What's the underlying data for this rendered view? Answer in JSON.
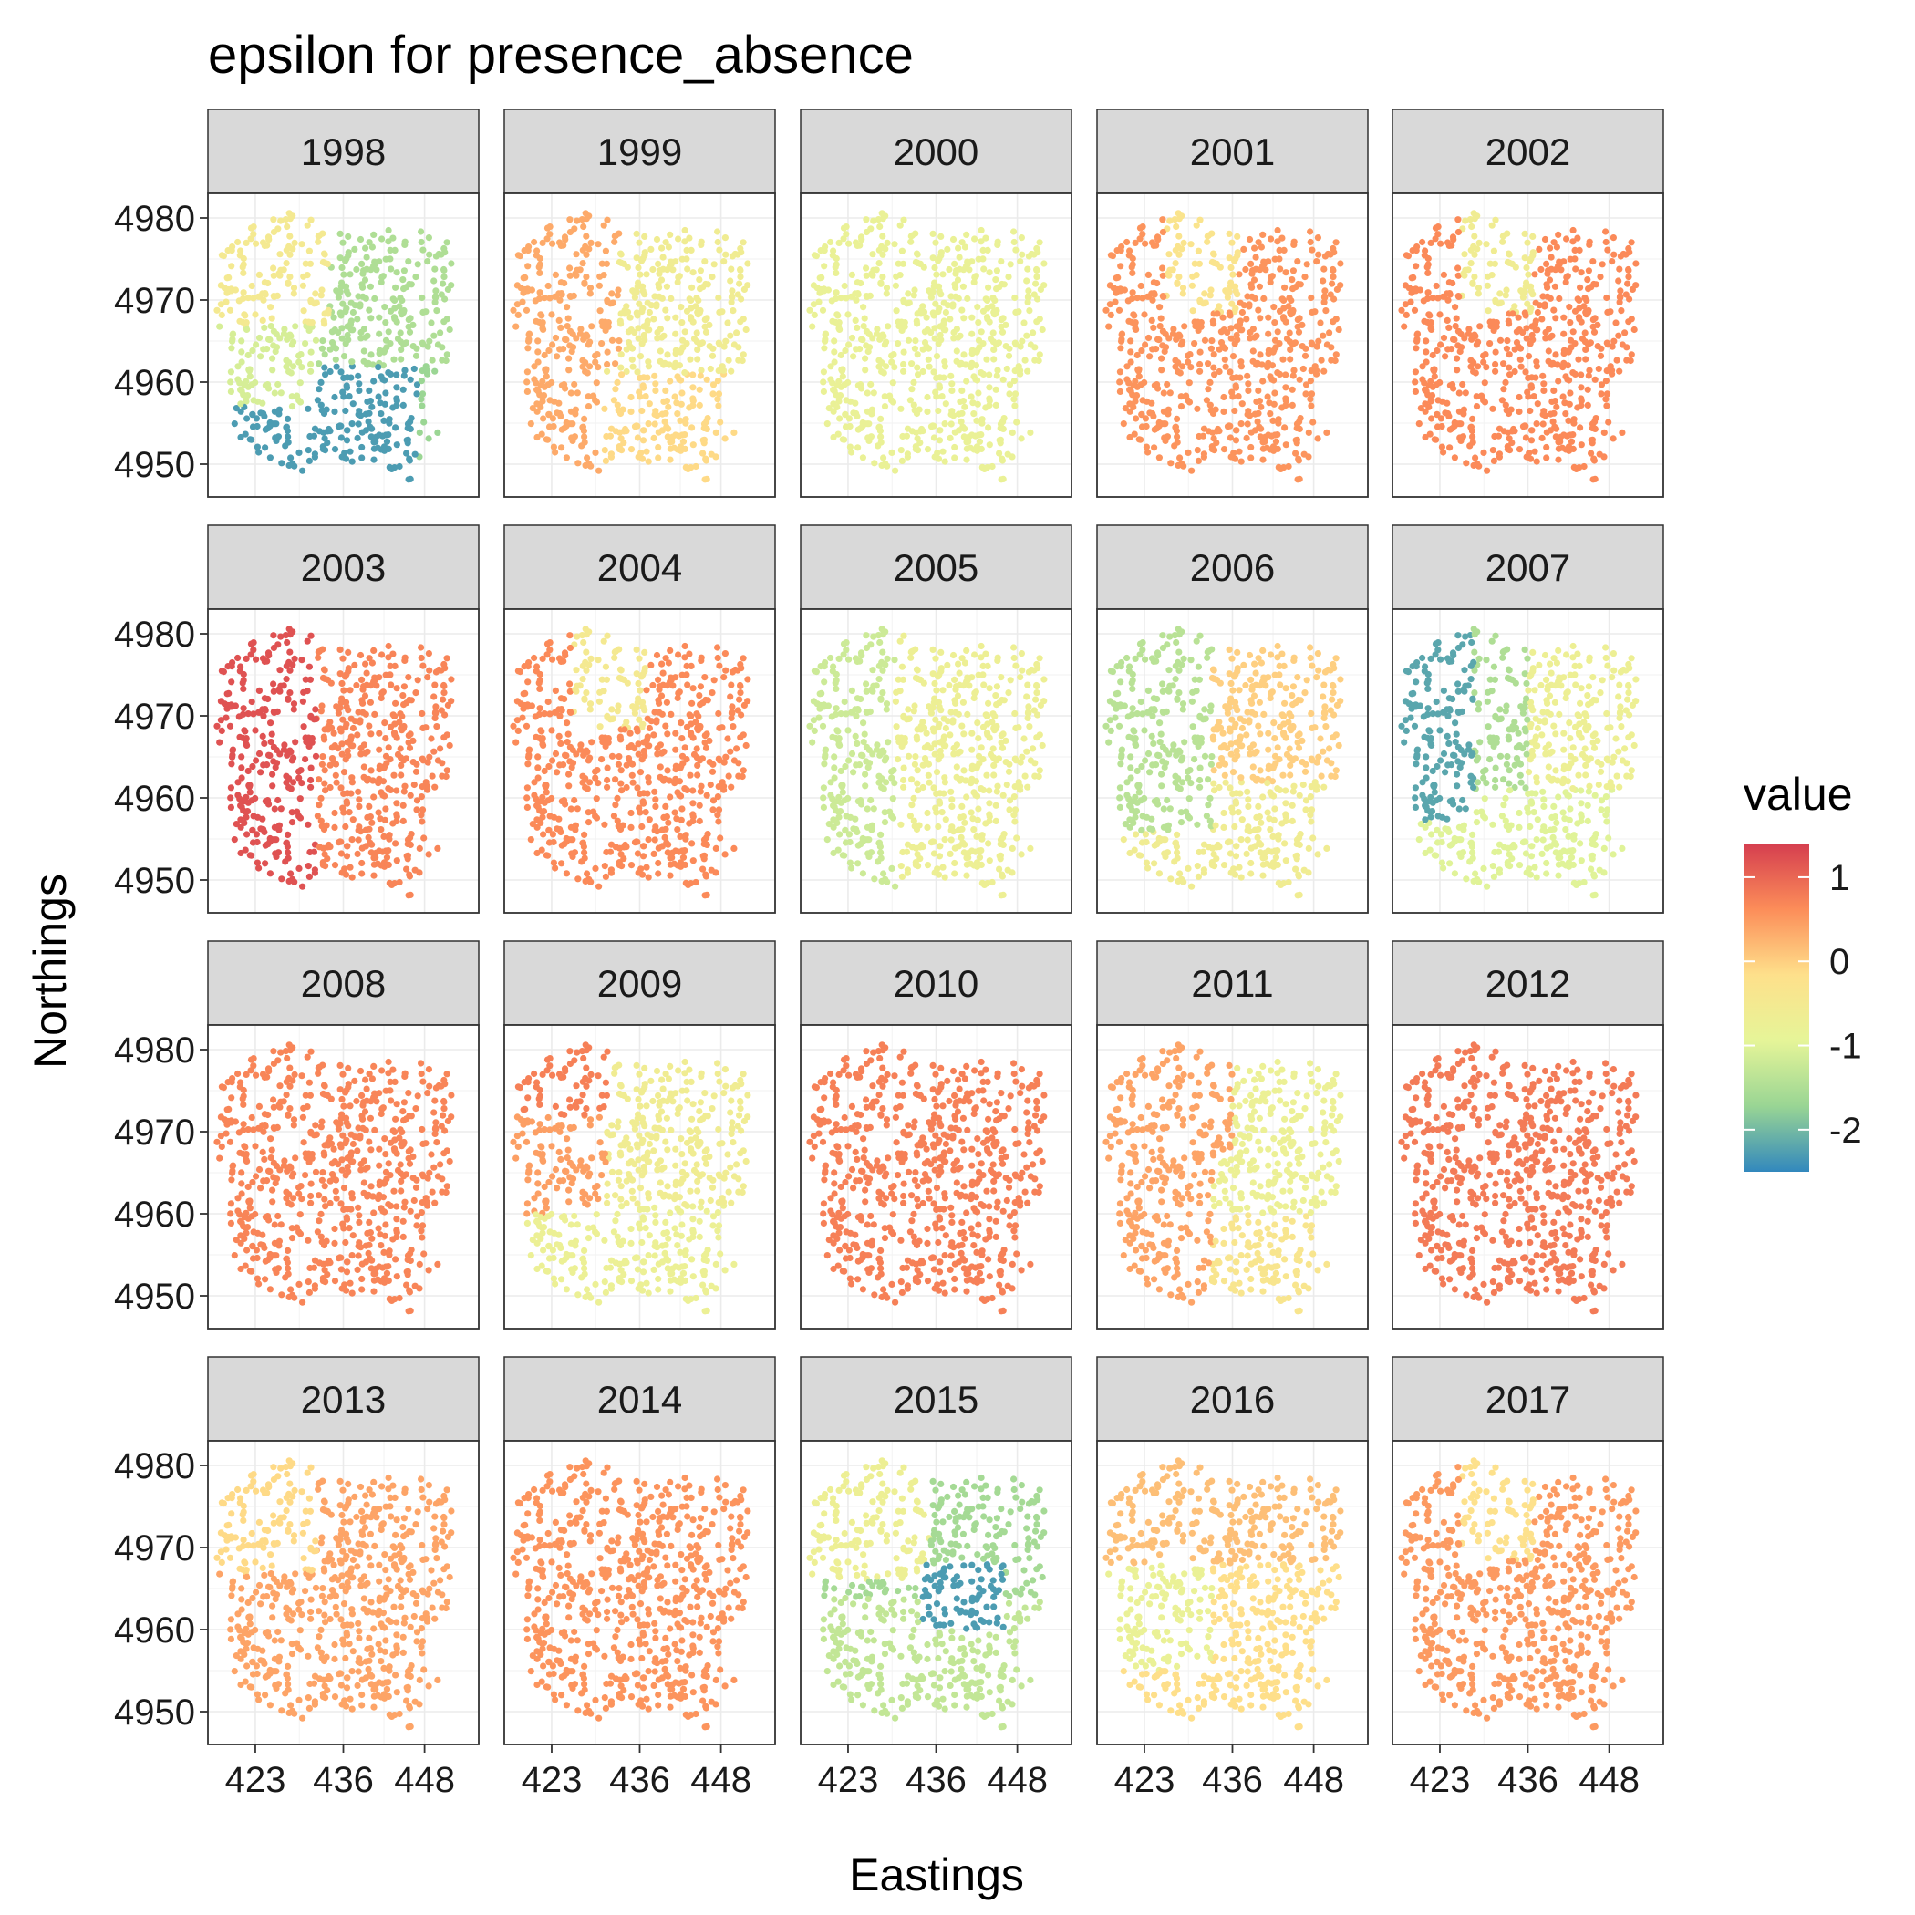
{
  "chart_data": {
    "type": "scatter",
    "title": "epsilon for presence_absence",
    "xlabel": "Eastings",
    "ylabel": "Northings",
    "x_ticks": [
      423,
      436,
      448
    ],
    "y_ticks": [
      4950,
      4960,
      4970,
      4980
    ],
    "xlim": [
      416,
      456
    ],
    "ylim": [
      4946,
      4983
    ],
    "legend": {
      "title": "value",
      "position": "right",
      "ticks": [
        1,
        0,
        -1,
        -2
      ],
      "range": [
        -2.5,
        1.4
      ],
      "colors": [
        "#3288bd",
        "#99d594",
        "#e6f598",
        "#fee08b",
        "#fc8d59",
        "#d53e4f"
      ]
    },
    "facets": [
      {
        "label": "1998",
        "zones": [
          {
            "name": "northwest",
            "value": -0.5
          },
          {
            "name": "west",
            "value": -1.1
          },
          {
            "name": "northeast",
            "value": -1.5
          },
          {
            "name": "south",
            "value": -2.3
          },
          {
            "name": "southeast",
            "value": -1.7
          }
        ]
      },
      {
        "label": "1999",
        "zones": [
          {
            "name": "west",
            "value": 0.35
          },
          {
            "name": "northeast",
            "value": -0.6
          },
          {
            "name": "south",
            "value": -0.1
          }
        ]
      },
      {
        "label": "2000",
        "zones": [
          {
            "name": "all",
            "value": -0.8
          }
        ]
      },
      {
        "label": "2001",
        "zones": [
          {
            "name": "north-central",
            "value": -0.3
          },
          {
            "name": "rest",
            "value": 0.55
          }
        ]
      },
      {
        "label": "2002",
        "zones": [
          {
            "name": "north-central",
            "value": -0.6
          },
          {
            "name": "rest",
            "value": 0.65
          }
        ]
      },
      {
        "label": "2003",
        "zones": [
          {
            "name": "west",
            "value": 1.2
          },
          {
            "name": "east",
            "value": 0.7
          }
        ]
      },
      {
        "label": "2004",
        "zones": [
          {
            "name": "north-central",
            "value": -0.5
          },
          {
            "name": "rest",
            "value": 0.65
          }
        ]
      },
      {
        "label": "2005",
        "zones": [
          {
            "name": "west",
            "value": -1.2
          },
          {
            "name": "east",
            "value": -0.7
          }
        ]
      },
      {
        "label": "2006",
        "zones": [
          {
            "name": "west",
            "value": -1.4
          },
          {
            "name": "northeast",
            "value": 0.0
          },
          {
            "name": "south",
            "value": -0.6
          }
        ]
      },
      {
        "label": "2007",
        "zones": [
          {
            "name": "west",
            "value": -2.2
          },
          {
            "name": "central",
            "value": -1.5
          },
          {
            "name": "east",
            "value": -0.7
          },
          {
            "name": "south",
            "value": -1.0
          }
        ]
      },
      {
        "label": "2008",
        "zones": [
          {
            "name": "all",
            "value": 0.7
          }
        ]
      },
      {
        "label": "2009",
        "zones": [
          {
            "name": "northwest",
            "value": 0.75
          },
          {
            "name": "west",
            "value": 0.45
          },
          {
            "name": "east",
            "value": -0.6
          },
          {
            "name": "south",
            "value": -0.75
          }
        ]
      },
      {
        "label": "2010",
        "zones": [
          {
            "name": "all",
            "value": 0.75
          }
        ]
      },
      {
        "label": "2011",
        "zones": [
          {
            "name": "west",
            "value": 0.4
          },
          {
            "name": "east",
            "value": -0.75
          },
          {
            "name": "south",
            "value": -0.35
          }
        ]
      },
      {
        "label": "2012",
        "zones": [
          {
            "name": "all",
            "value": 0.8
          }
        ]
      },
      {
        "label": "2013",
        "zones": [
          {
            "name": "northwest",
            "value": -0.1
          },
          {
            "name": "rest",
            "value": 0.4
          }
        ]
      },
      {
        "label": "2014",
        "zones": [
          {
            "name": "all",
            "value": 0.55
          }
        ]
      },
      {
        "label": "2015",
        "zones": [
          {
            "name": "northwest",
            "value": -0.7
          },
          {
            "name": "northeast",
            "value": -1.6
          },
          {
            "name": "center",
            "value": -2.3
          },
          {
            "name": "south",
            "value": -1.3
          }
        ]
      },
      {
        "label": "2016",
        "zones": [
          {
            "name": "north",
            "value": 0.15
          },
          {
            "name": "west",
            "value": -0.8
          },
          {
            "name": "southeast",
            "value": -0.15
          }
        ]
      },
      {
        "label": "2017",
        "zones": [
          {
            "name": "north-central",
            "value": -0.2
          },
          {
            "name": "rest",
            "value": 0.5
          }
        ]
      }
    ]
  }
}
